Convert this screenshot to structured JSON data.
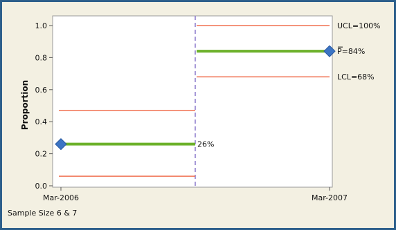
{
  "chart_data": {
    "type": "line",
    "title": "",
    "xlabel": "",
    "ylabel": "Proportion",
    "ylim": [
      0,
      1.0
    ],
    "x_tick_labels": [
      "Mar-2006",
      "Mar-2007"
    ],
    "y_tick_labels": [
      "0.0",
      "0.2",
      "0.4",
      "0.6",
      "0.8",
      "1.0"
    ],
    "footnote": "Sample Size 6 & 7",
    "colors": {
      "center_line": "#6cb12a",
      "limit_line": "#f07050",
      "marker": "#3c74c4",
      "phase_divider": "#8a79cc"
    },
    "phases": [
      {
        "x_start": "Mar-2006",
        "x_end": "",
        "p": 0.26,
        "ucl": 0.47,
        "lcl": 0.06,
        "center_label": "26%",
        "ucl_label": "",
        "lcl_label": ""
      },
      {
        "x_start": "",
        "x_end": "Mar-2007",
        "p": 0.84,
        "ucl": 1.0,
        "lcl": 0.68,
        "center_label": "P=84%",
        "ucl_label": "UCL=100%",
        "lcl_label": "LCL=68%"
      }
    ],
    "points": [
      {
        "x": "Mar-2006",
        "y": 0.26
      },
      {
        "x": "Mar-2007",
        "y": 0.84
      }
    ]
  }
}
